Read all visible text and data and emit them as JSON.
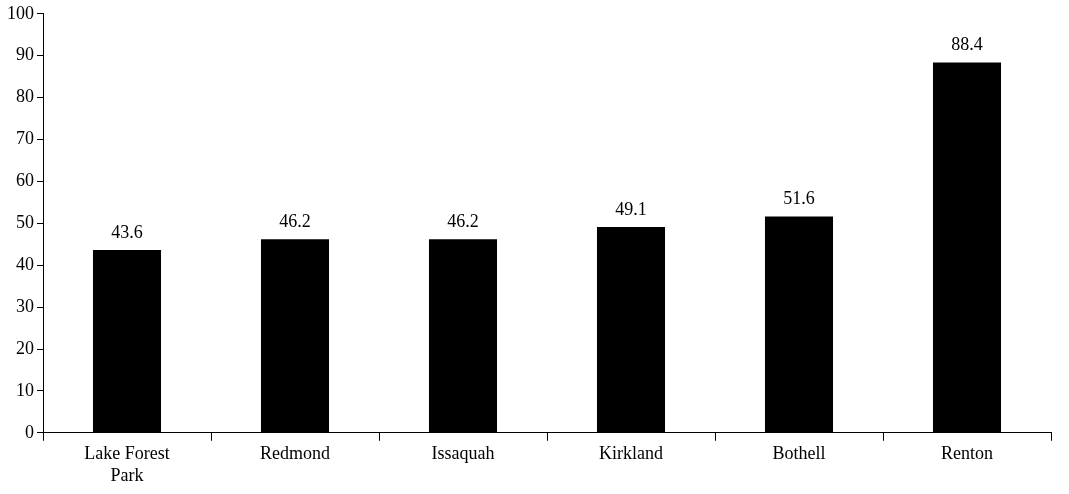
{
  "chart_data": {
    "type": "bar",
    "categories": [
      "Lake Forest Park",
      "Redmond",
      "Issaquah",
      "Kirkland",
      "Bothell",
      "Renton"
    ],
    "values": [
      43.6,
      46.2,
      46.2,
      49.1,
      51.6,
      88.4
    ],
    "color": "#000000",
    "ylim": [
      0,
      100
    ],
    "yticks": [
      0,
      10,
      20,
      30,
      40,
      50,
      60,
      70,
      80,
      90,
      100
    ],
    "grid": false,
    "legend": false,
    "data_labels": true
  }
}
